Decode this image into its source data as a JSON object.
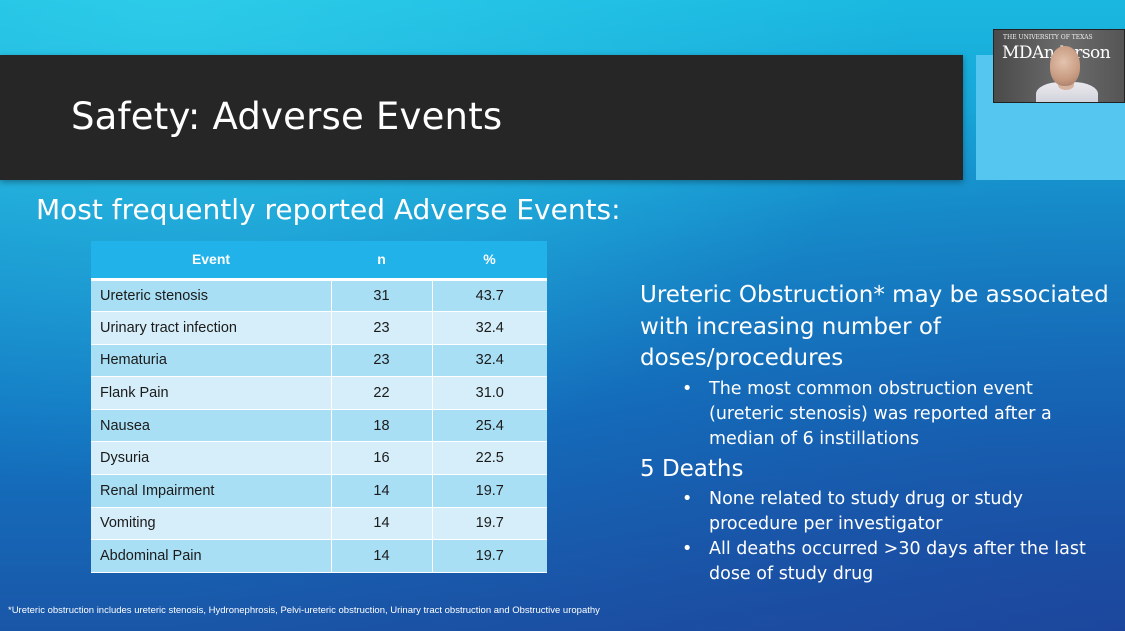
{
  "slide": {
    "title": "Safety: Adverse Events",
    "subtitle": "Most frequently reported Adverse Events:",
    "footnote": "*Ureteric obstruction includes ureteric stenosis, Hydronephrosis, Pelvi-ureteric obstruction, Urinary tract obstruction and Obstructive uropathy"
  },
  "webcam": {
    "logo_small": "THE UNIVERSITY OF TEXAS",
    "logo_big": "MDAnderson",
    "presenter": "video-feed"
  },
  "table": {
    "headers": [
      "Event",
      "n",
      "%"
    ],
    "rows": [
      {
        "event": "Ureteric stenosis",
        "n": "31",
        "pct": "43.7"
      },
      {
        "event": "Urinary tract infection",
        "n": "23",
        "pct": "32.4"
      },
      {
        "event": "Hematuria",
        "n": "23",
        "pct": "32.4"
      },
      {
        "event": "Flank Pain",
        "n": "22",
        "pct": "31.0"
      },
      {
        "event": "Nausea",
        "n": "18",
        "pct": "25.4"
      },
      {
        "event": "Dysuria",
        "n": "16",
        "pct": "22.5"
      },
      {
        "event": "Renal Impairment",
        "n": "14",
        "pct": "19.7"
      },
      {
        "event": "Vomiting",
        "n": "14",
        "pct": "19.7"
      },
      {
        "event": "Abdominal Pain",
        "n": "14",
        "pct": "19.7"
      }
    ]
  },
  "right": {
    "obstruction_heading": "Ureteric Obstruction* may be associated with increasing number of doses/procedures",
    "obstruction_bullets": [
      "The most common obstruction event (ureteric stenosis) was reported after a median of 6 instillations"
    ],
    "deaths_heading": "5 Deaths",
    "deaths_bullets": [
      "None related to study drug or study procedure per investigator",
      "All deaths occurred >30 days after the last dose of study drug"
    ],
    "bullet_glyph": "•"
  },
  "colors": {
    "title_bar": "#262626",
    "accent": "#54c6ef",
    "table_header": "#20b2e8",
    "row_odd": "#a9dff4",
    "row_even": "#d5eef9"
  }
}
